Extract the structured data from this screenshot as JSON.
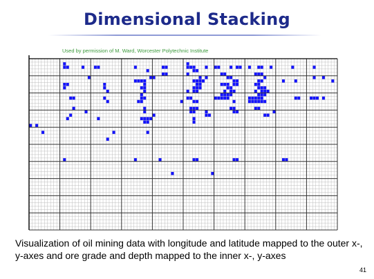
{
  "slide": {
    "title": "Dimensional Stacking",
    "credit": "Used by permission of M. Ward, Worcester Polytechnic Institute",
    "caption": "Visualization of oil mining data with longitude and latitude mapped to the outer x-, y-axes and ore grade and depth mapped to the inner x-, y-axes",
    "page_number": "41"
  },
  "colors": {
    "title": "#1d2a8a",
    "credit": "#3c9a3c",
    "cell_fill": "#1414ff",
    "fine_grid": "#bdbdbd",
    "coarse_grid": "#333333"
  },
  "chart_data": {
    "type": "heatmap",
    "grid": true,
    "outer_columns": 10,
    "outer_rows": 10,
    "inner_columns": 10,
    "inner_rows": 5,
    "filled_cells": [
      [
        11,
        1
      ],
      [
        11,
        2
      ],
      [
        12,
        2
      ],
      [
        17,
        2
      ],
      [
        21,
        2
      ],
      [
        22,
        2
      ],
      [
        34,
        2
      ],
      [
        43,
        2
      ],
      [
        44,
        2
      ],
      [
        51,
        1
      ],
      [
        51,
        2
      ],
      [
        52,
        2
      ],
      [
        53,
        2
      ],
      [
        57,
        2
      ],
      [
        60,
        2
      ],
      [
        61,
        2
      ],
      [
        65,
        2
      ],
      [
        67,
        2
      ],
      [
        68,
        2
      ],
      [
        71,
        2
      ],
      [
        74,
        2
      ],
      [
        75,
        2
      ],
      [
        78,
        2
      ],
      [
        85,
        2
      ],
      [
        92,
        2
      ],
      [
        104,
        2
      ],
      [
        106,
        2
      ],
      [
        38,
        3
      ],
      [
        53,
        3
      ],
      [
        54,
        3
      ],
      [
        43,
        4
      ],
      [
        44,
        4
      ],
      [
        51,
        4
      ],
      [
        62,
        4
      ],
      [
        63,
        4
      ],
      [
        73,
        4
      ],
      [
        74,
        4
      ],
      [
        75,
        4
      ],
      [
        19,
        5
      ],
      [
        39,
        5
      ],
      [
        40,
        5
      ],
      [
        55,
        5
      ],
      [
        57,
        5
      ],
      [
        64,
        5
      ],
      [
        65,
        5
      ],
      [
        76,
        5
      ],
      [
        92,
        5
      ],
      [
        95,
        5
      ],
      [
        34,
        6
      ],
      [
        35,
        6
      ],
      [
        36,
        6
      ],
      [
        37,
        6
      ],
      [
        53,
        6
      ],
      [
        54,
        6
      ],
      [
        55,
        6
      ],
      [
        56,
        6
      ],
      [
        66,
        6
      ],
      [
        67,
        6
      ],
      [
        74,
        6
      ],
      [
        75,
        6
      ],
      [
        86,
        6
      ],
      [
        82,
        6
      ],
      [
        98,
        6
      ],
      [
        11,
        7
      ],
      [
        12,
        7
      ],
      [
        24,
        7
      ],
      [
        37,
        7
      ],
      [
        54,
        7
      ],
      [
        55,
        7
      ],
      [
        62,
        7
      ],
      [
        63,
        7
      ],
      [
        64,
        7
      ],
      [
        66,
        7
      ],
      [
        67,
        7
      ],
      [
        73,
        7
      ],
      [
        74,
        7
      ],
      [
        11,
        8
      ],
      [
        24,
        8
      ],
      [
        36,
        8
      ],
      [
        37,
        8
      ],
      [
        53,
        8
      ],
      [
        54,
        8
      ],
      [
        55,
        8
      ],
      [
        64,
        8
      ],
      [
        65,
        8
      ],
      [
        74,
        8
      ],
      [
        75,
        8
      ],
      [
        76,
        8
      ],
      [
        106,
        8
      ],
      [
        25,
        9
      ],
      [
        37,
        9
      ],
      [
        51,
        9
      ],
      [
        53,
        9
      ],
      [
        54,
        9
      ],
      [
        63,
        9
      ],
      [
        65,
        9
      ],
      [
        66,
        9
      ],
      [
        73,
        9
      ],
      [
        75,
        9
      ],
      [
        76,
        9
      ],
      [
        77,
        9
      ],
      [
        36,
        10
      ],
      [
        62,
        10
      ],
      [
        63,
        10
      ],
      [
        64,
        10
      ],
      [
        65,
        10
      ],
      [
        74,
        10
      ],
      [
        75,
        10
      ],
      [
        76,
        10
      ],
      [
        13,
        11
      ],
      [
        14,
        11
      ],
      [
        24,
        11
      ],
      [
        36,
        11
      ],
      [
        37,
        11
      ],
      [
        51,
        11
      ],
      [
        52,
        11
      ],
      [
        60,
        11
      ],
      [
        61,
        11
      ],
      [
        62,
        11
      ],
      [
        63,
        11
      ],
      [
        64,
        11
      ],
      [
        71,
        11
      ],
      [
        72,
        11
      ],
      [
        73,
        11
      ],
      [
        74,
        11
      ],
      [
        75,
        11
      ],
      [
        86,
        11
      ],
      [
        87,
        11
      ],
      [
        91,
        11
      ],
      [
        92,
        11
      ],
      [
        93,
        11
      ],
      [
        95,
        11
      ],
      [
        25,
        12
      ],
      [
        35,
        12
      ],
      [
        36,
        12
      ],
      [
        49,
        12
      ],
      [
        53,
        12
      ],
      [
        54,
        12
      ],
      [
        66,
        12
      ],
      [
        71,
        12
      ],
      [
        72,
        12
      ],
      [
        73,
        12
      ],
      [
        74,
        12
      ],
      [
        75,
        12
      ],
      [
        76,
        12
      ],
      [
        14,
        14
      ],
      [
        37,
        14
      ],
      [
        52,
        14
      ],
      [
        53,
        14
      ],
      [
        54,
        14
      ],
      [
        65,
        14
      ],
      [
        66,
        14
      ],
      [
        73,
        14
      ],
      [
        74,
        14
      ],
      [
        18,
        15
      ],
      [
        37,
        15
      ],
      [
        52,
        15
      ],
      [
        53,
        15
      ],
      [
        57,
        15
      ],
      [
        66,
        15
      ],
      [
        67,
        15
      ],
      [
        79,
        15
      ],
      [
        13,
        16
      ],
      [
        40,
        16
      ],
      [
        57,
        16
      ],
      [
        58,
        16
      ],
      [
        76,
        16
      ],
      [
        77,
        16
      ],
      [
        12,
        17
      ],
      [
        22,
        17
      ],
      [
        36,
        17
      ],
      [
        37,
        17
      ],
      [
        38,
        17
      ],
      [
        39,
        17
      ],
      [
        53,
        17
      ],
      [
        37,
        18
      ],
      [
        38,
        18
      ],
      [
        53,
        18
      ],
      [
        0,
        19
      ],
      [
        2,
        19
      ],
      [
        4,
        21
      ],
      [
        27,
        21
      ],
      [
        38,
        21
      ],
      [
        25,
        23
      ],
      [
        11,
        29
      ],
      [
        34,
        29
      ],
      [
        42,
        29
      ],
      [
        53,
        29
      ],
      [
        54,
        29
      ],
      [
        66,
        29
      ],
      [
        67,
        29
      ],
      [
        82,
        29
      ],
      [
        83,
        29
      ],
      [
        46,
        33
      ],
      [
        59,
        33
      ]
    ]
  }
}
